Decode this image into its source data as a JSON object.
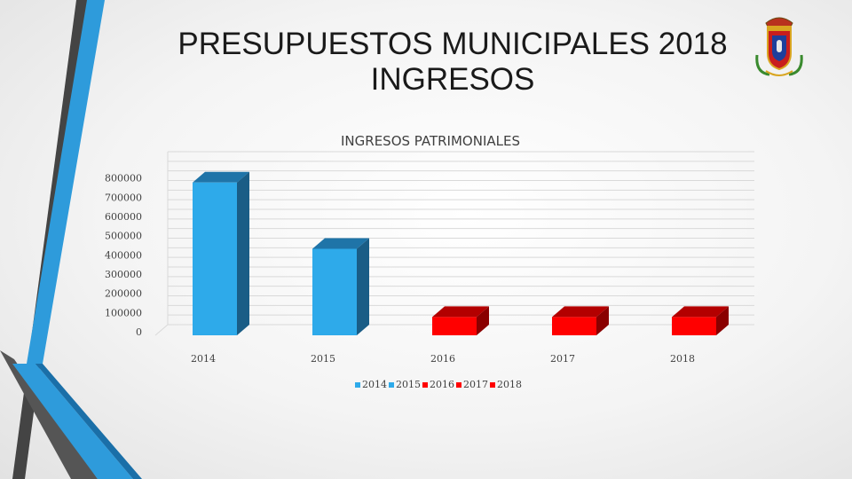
{
  "slide": {
    "title_line1": "PRESUPUESTOS MUNICIPALES 2018",
    "title_line2": "INGRESOS"
  },
  "logo": {
    "icon": "municipal-coat-of-arms-icon"
  },
  "colors": {
    "blue_front": "#2eaaea",
    "blue_side": "#1a5d86",
    "blue_top": "#1f74a8",
    "red_front": "#ff0000",
    "red_side": "#8a0000",
    "red_top": "#b30000",
    "grid": "#d9d9d9",
    "deco_dark": "#444444",
    "deco_blue": "#2e9bdb"
  },
  "chart_data": {
    "type": "bar",
    "title": "INGRESOS PATRIMONIALES",
    "categories": [
      "2014",
      "2015",
      "2016",
      "2017",
      "2018"
    ],
    "values": [
      795000,
      450000,
      95000,
      95000,
      95000
    ],
    "bar_colors": [
      "blue",
      "blue",
      "red",
      "red",
      "red"
    ],
    "yticks": [
      "0",
      "100000",
      "200000",
      "300000",
      "400000",
      "500000",
      "600000",
      "700000",
      "800000"
    ],
    "ylim": [
      0,
      900000
    ],
    "grid": true,
    "three_d": true,
    "legend": {
      "position": "bottom",
      "entries": [
        "2014",
        "2015",
        "2016",
        "2017",
        "2018"
      ]
    }
  }
}
